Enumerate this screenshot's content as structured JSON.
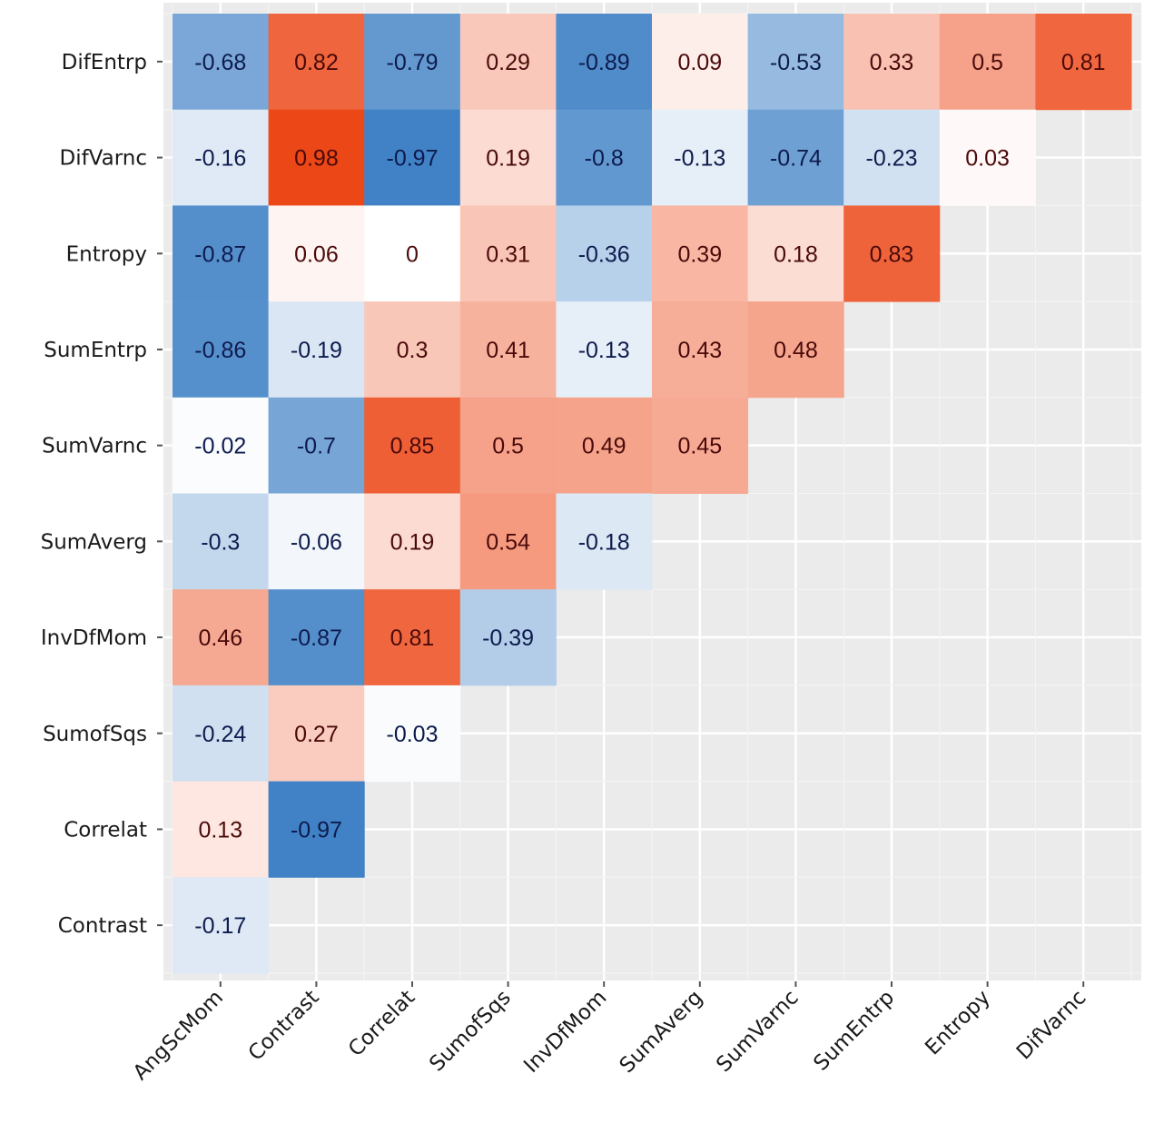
{
  "chart_data": {
    "type": "heatmap",
    "title": "",
    "xlabel": "",
    "ylabel": "",
    "x_categories": [
      "AngScMom",
      "Contrast",
      "Correlat",
      "SumofSqs",
      "InvDfMom",
      "SumAverg",
      "SumVarnc",
      "SumEntrp",
      "Entropy",
      "DifVarnc"
    ],
    "y_categories_top_to_bottom": [
      "DifEntrp",
      "DifVarnc",
      "Entropy",
      "SumEntrp",
      "SumVarnc",
      "SumAverg",
      "InvDfMom",
      "SumofSqs",
      "Correlat",
      "Contrast"
    ],
    "values": [
      [
        -0.68,
        0.82,
        -0.79,
        0.29,
        -0.89,
        0.09,
        -0.53,
        0.33,
        0.5,
        0.81
      ],
      [
        -0.16,
        0.98,
        -0.97,
        0.19,
        -0.8,
        -0.13,
        -0.74,
        -0.23,
        0.03
      ],
      [
        -0.87,
        0.06,
        0,
        0.31,
        -0.36,
        0.39,
        0.18,
        0.83
      ],
      [
        -0.86,
        -0.19,
        0.3,
        0.41,
        -0.13,
        0.43,
        0.48
      ],
      [
        -0.02,
        -0.7,
        0.85,
        0.5,
        0.49,
        0.45
      ],
      [
        -0.3,
        -0.06,
        0.19,
        0.54,
        -0.18
      ],
      [
        0.46,
        -0.87,
        0.81,
        -0.39
      ],
      [
        -0.24,
        0.27,
        -0.03
      ],
      [
        0.13,
        -0.97
      ],
      [
        -0.17
      ]
    ],
    "color_scale": {
      "range": [
        -1,
        1
      ],
      "negative_color": "#3b7ec4",
      "zero_color": "#ffffff",
      "positive_color": "#ec4312"
    },
    "grid": true,
    "legend": "none",
    "panel_background": "#ebebeb",
    "label_colors": {
      "negative": "#0d1b4d",
      "positive": "#4a0a0a"
    }
  }
}
